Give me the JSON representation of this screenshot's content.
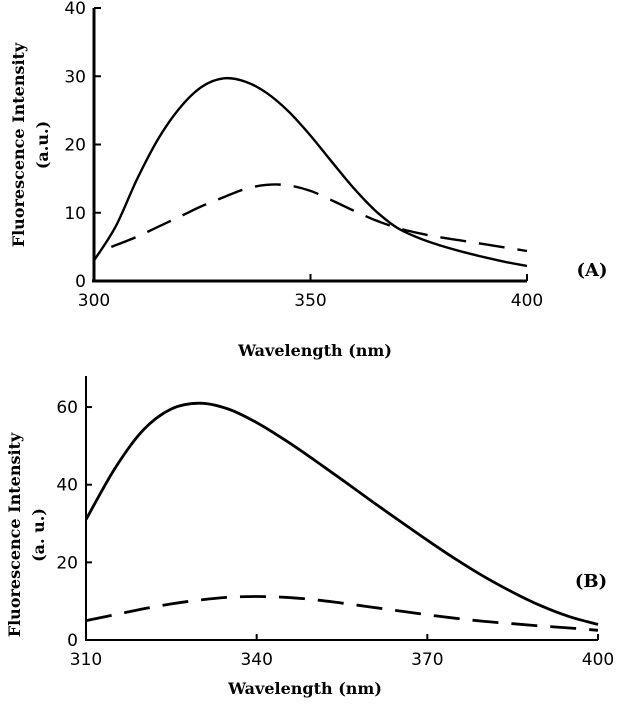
{
  "chart_data": [
    {
      "type": "line",
      "panel_label": "(A)",
      "xlabel": "Wavelength (nm)",
      "ylabel": "Fluorescence Intensity",
      "ylabel_unit": "(a.u.)",
      "xlim": [
        300,
        400
      ],
      "ylim": [
        0,
        40
      ],
      "xticks": [
        300,
        350,
        400
      ],
      "yticks": [
        0,
        10,
        20,
        30,
        40
      ],
      "grid": false,
      "series": [
        {
          "style": "solid",
          "x": [
            300,
            305,
            310,
            315,
            320,
            325,
            330,
            335,
            340,
            345,
            350,
            355,
            360,
            365,
            370,
            375,
            380,
            385,
            390,
            395,
            400
          ],
          "y": [
            3,
            8,
            15,
            21,
            25.5,
            28.5,
            29.7,
            29.2,
            27.5,
            24.8,
            21.3,
            17.4,
            13.6,
            10.3,
            7.8,
            6.3,
            5.2,
            4.3,
            3.5,
            2.8,
            2.2
          ]
        },
        {
          "style": "dashed",
          "x": [
            304,
            310,
            315,
            320,
            325,
            330,
            335,
            340,
            345,
            350,
            355,
            360,
            365,
            370,
            375,
            380,
            385,
            390,
            395,
            400
          ],
          "y": [
            5,
            6.5,
            8,
            9.5,
            11,
            12.3,
            13.5,
            14.1,
            14,
            13.2,
            11.8,
            10.3,
            8.9,
            7.8,
            7,
            6.4,
            5.9,
            5.4,
            4.9,
            4.4
          ]
        }
      ]
    },
    {
      "type": "line",
      "panel_label": "(B)",
      "xlabel": "Wavelength (nm)",
      "ylabel": "Fluorescence Intensity",
      "ylabel_unit": "(a. u.)",
      "xlim": [
        310,
        400
      ],
      "ylim": [
        0,
        68
      ],
      "xticks": [
        310,
        340,
        370,
        400
      ],
      "yticks": [
        0,
        20,
        40,
        60
      ],
      "grid": false,
      "series": [
        {
          "style": "solid",
          "x": [
            310,
            315,
            320,
            325,
            330,
            335,
            340,
            345,
            350,
            355,
            360,
            365,
            370,
            375,
            380,
            385,
            390,
            395,
            400
          ],
          "y": [
            31,
            44,
            54,
            59.5,
            61,
            59.5,
            56,
            51.5,
            46.5,
            41.3,
            36,
            30.8,
            25.7,
            20.8,
            16.3,
            12.3,
            8.8,
            6,
            4
          ]
        },
        {
          "style": "dashed",
          "x": [
            310,
            315,
            320,
            325,
            330,
            335,
            340,
            345,
            350,
            355,
            360,
            365,
            370,
            375,
            380,
            385,
            390,
            395,
            400
          ],
          "y": [
            5,
            6.5,
            8,
            9.3,
            10.3,
            11,
            11.2,
            11,
            10.4,
            9.5,
            8.5,
            7.5,
            6.5,
            5.6,
            4.8,
            4.2,
            3.6,
            3.1,
            2.5
          ]
        }
      ]
    }
  ]
}
